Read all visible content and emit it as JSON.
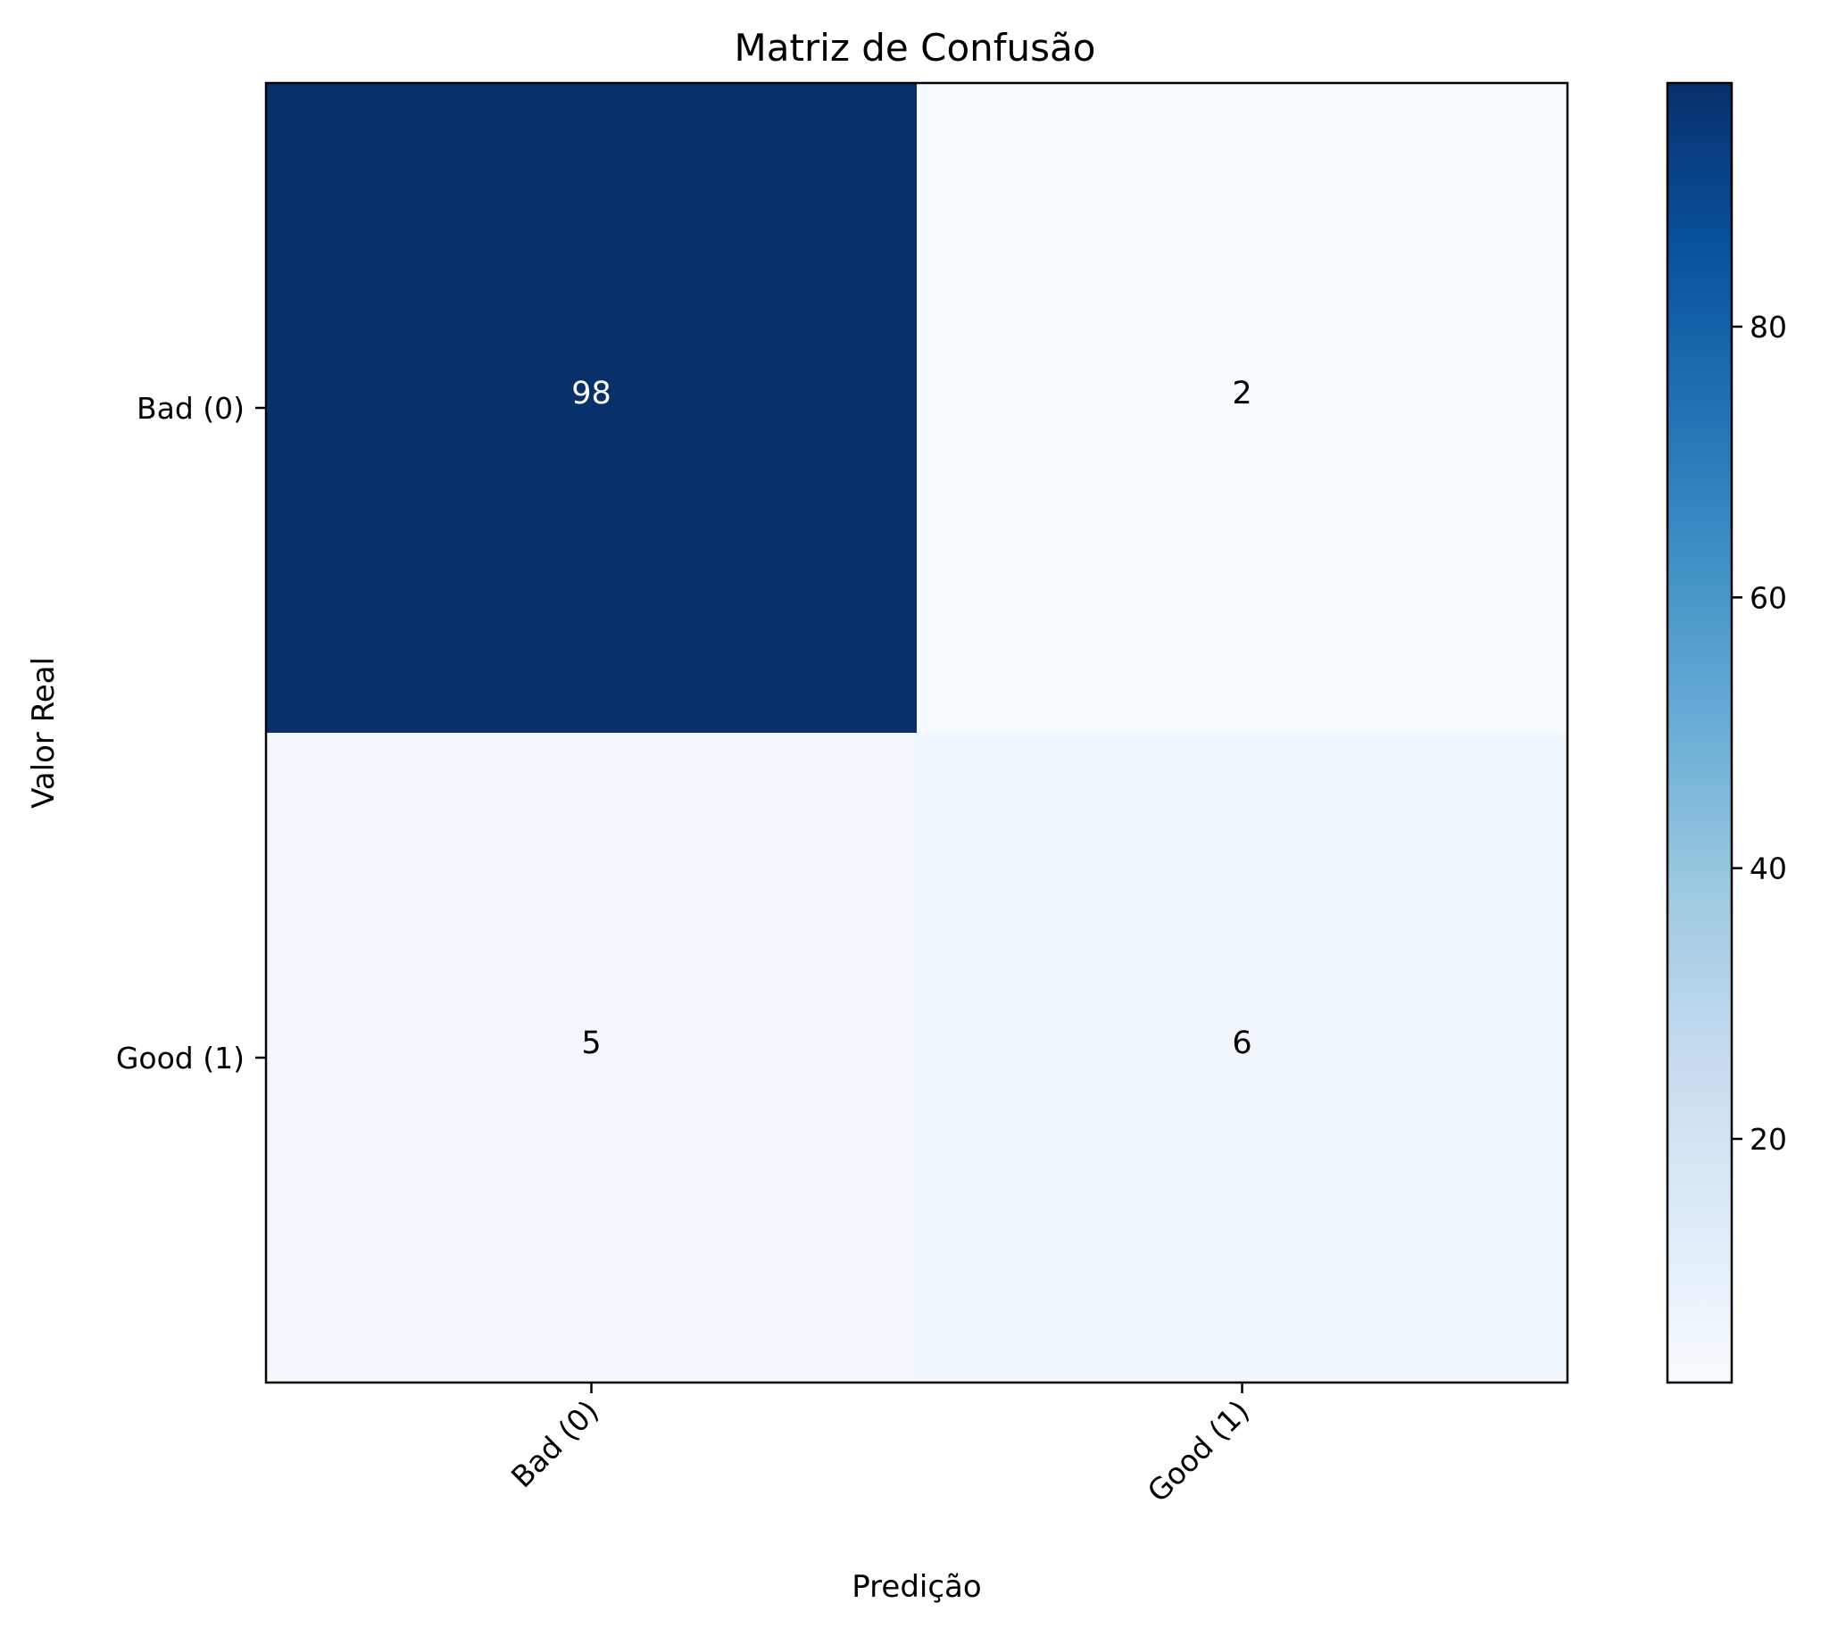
{
  "chart_data": {
    "type": "heatmap",
    "title": "Matriz de Confusão",
    "xlabel": "Predição",
    "ylabel": "Valor Real",
    "x_categories": [
      "Bad (0)",
      "Good (1)"
    ],
    "y_categories": [
      "Bad (0)",
      "Good (1)"
    ],
    "values": [
      [
        98,
        2
      ],
      [
        5,
        6
      ]
    ],
    "colormap": "Blues",
    "colorbar": {
      "range": [
        2,
        98
      ],
      "ticks": [
        "20",
        "40",
        "60",
        "80"
      ],
      "tick_values": [
        20,
        40,
        60,
        80
      ]
    },
    "grid": false,
    "x_tick_rotation": "45 degrees"
  }
}
